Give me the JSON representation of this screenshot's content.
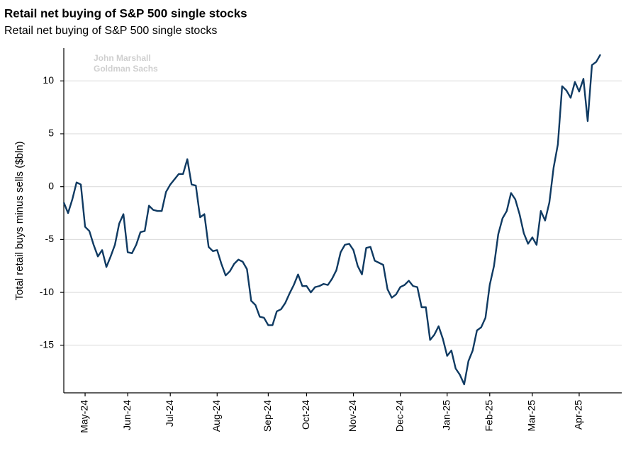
{
  "chart_data": {
    "type": "line",
    "title": "Retail net buying of S&P 500 single stocks",
    "subtitle": "Retail net buying of S&P 500 single stocks",
    "ylabel": "Total retail buys minus sells ($bln)",
    "annotations": [
      "John Marshall",
      "Goldman Sachs"
    ],
    "color": "#0f3a62",
    "categories": [
      null,
      null,
      null,
      null,
      null,
      "May-24",
      null,
      null,
      null,
      null,
      null,
      null,
      null,
      null,
      null,
      "Jun-24",
      null,
      null,
      null,
      null,
      null,
      null,
      null,
      null,
      null,
      "Jul-24",
      null,
      null,
      null,
      null,
      null,
      null,
      null,
      null,
      null,
      null,
      "Aug-24",
      null,
      null,
      null,
      null,
      null,
      null,
      null,
      null,
      null,
      null,
      null,
      "Sep-24",
      null,
      null,
      null,
      null,
      null,
      null,
      null,
      null,
      "Oct-24",
      null,
      null,
      null,
      null,
      null,
      null,
      null,
      null,
      null,
      null,
      "Nov-24",
      null,
      null,
      null,
      null,
      null,
      null,
      null,
      null,
      null,
      null,
      "Dec-24",
      null,
      null,
      null,
      null,
      null,
      null,
      null,
      null,
      null,
      null,
      "Jan-25",
      null,
      null,
      null,
      null,
      null,
      null,
      null,
      null,
      null,
      "Feb-25",
      null,
      null,
      null,
      null,
      null,
      null,
      null,
      null,
      null,
      "Mar-25",
      null,
      null,
      null,
      null,
      null,
      null,
      null,
      null,
      null,
      null,
      "Apr-25",
      null,
      null,
      null,
      null,
      null
    ],
    "values": [
      -1.5,
      -2.5,
      -1.2,
      0.4,
      0.2,
      -3.8,
      -4.2,
      -5.5,
      -6.6,
      -6.0,
      -7.6,
      -6.6,
      -5.5,
      -3.5,
      -2.6,
      -6.2,
      -6.3,
      -5.5,
      -4.3,
      -4.2,
      -1.8,
      -2.2,
      -2.3,
      -2.3,
      -0.5,
      0.2,
      0.7,
      1.2,
      1.2,
      2.6,
      0.2,
      0.1,
      -2.9,
      -2.6,
      -5.7,
      -6.1,
      -6.0,
      -7.3,
      -8.4,
      -8.0,
      -7.3,
      -6.9,
      -7.1,
      -7.8,
      -10.8,
      -11.2,
      -12.3,
      -12.4,
      -13.1,
      -13.1,
      -11.8,
      -11.6,
      -11.0,
      -10.1,
      -9.3,
      -8.3,
      -9.4,
      -9.4,
      -10.0,
      -9.5,
      -9.4,
      -9.2,
      -9.3,
      -8.7,
      -7.9,
      -6.2,
      -5.5,
      -5.4,
      -6.0,
      -7.5,
      -8.3,
      -5.8,
      -5.7,
      -7.0,
      -7.2,
      -7.4,
      -9.7,
      -10.5,
      -10.2,
      -9.5,
      -9.3,
      -8.9,
      -9.4,
      -9.5,
      -11.4,
      -11.4,
      -14.5,
      -14.0,
      -13.2,
      -14.4,
      -16.0,
      -15.5,
      -17.2,
      -17.8,
      -18.7,
      -16.5,
      -15.5,
      -13.6,
      -13.3,
      -12.4,
      -9.3,
      -7.5,
      -4.5,
      -3.0,
      -2.3,
      -0.6,
      -1.2,
      -2.6,
      -4.4,
      -5.4,
      -4.8,
      -5.5,
      -2.3,
      -3.2,
      -1.5,
      1.8,
      4.0,
      9.5,
      9.1,
      8.4,
      9.9,
      9.0,
      10.2,
      6.2,
      11.5,
      11.8,
      12.5
    ],
    "ylim": [
      -19.5,
      13.1
    ],
    "yticks": [
      -15,
      -10,
      -5,
      0,
      5,
      10
    ],
    "grid": true
  }
}
